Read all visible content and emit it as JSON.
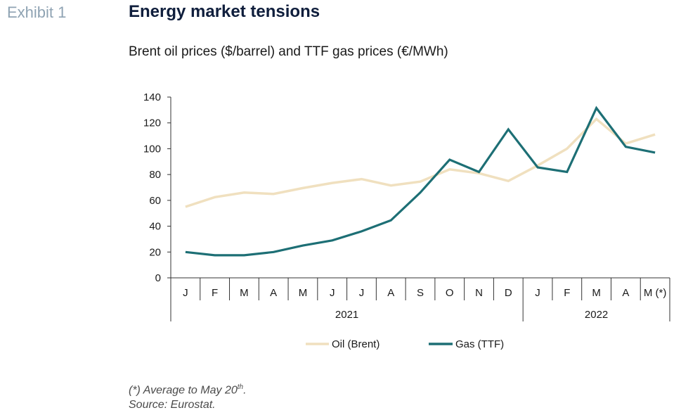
{
  "header": {
    "exhibit": "Exhibit 1",
    "title": "Energy market tensions",
    "subtitle": "Brent oil prices ($/barrel) and TTF gas prices (€/MWh)"
  },
  "footnote": {
    "line1_prefix": "(*) Average to May 20",
    "line1_sup": "th",
    "line1_suffix": ".",
    "line2": "Source: Eurostat."
  },
  "chart_data": {
    "type": "line",
    "categories": [
      "J",
      "F",
      "M",
      "A",
      "M",
      "J",
      "J",
      "A",
      "S",
      "O",
      "N",
      "D",
      "J",
      "F",
      "M",
      "A",
      "M (*)"
    ],
    "years": [
      {
        "label": "2021",
        "start": 0,
        "end": 11
      },
      {
        "label": "2022",
        "start": 12,
        "end": 16
      }
    ],
    "ylim": [
      0,
      140
    ],
    "yticks": [
      0,
      20,
      40,
      60,
      80,
      100,
      120,
      140
    ],
    "grid": false,
    "legend_position": "bottom",
    "series": [
      {
        "name": "Oil (Brent)",
        "color": "#f0e0bf",
        "values": [
          55,
          62.5,
          66,
          65,
          69.5,
          73.5,
          76.5,
          71.5,
          74.5,
          84,
          81,
          75,
          87,
          100,
          123,
          104,
          111
        ]
      },
      {
        "name": "Gas (TTF)",
        "color": "#1d6f75",
        "values": [
          20,
          17.5,
          17.5,
          20,
          25,
          29,
          36,
          44.5,
          66,
          91.5,
          82,
          115,
          85.5,
          82,
          131.5,
          101.5,
          97
        ]
      }
    ]
  }
}
